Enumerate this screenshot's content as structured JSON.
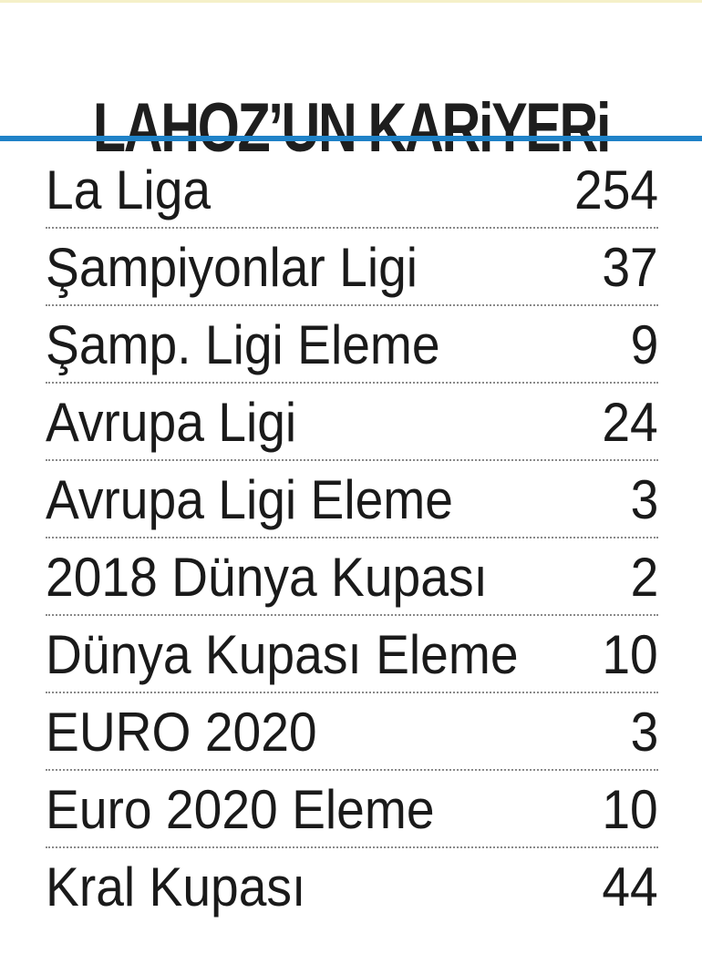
{
  "header": {
    "title": "LAHOZ’UN KARiYERi"
  },
  "career": [
    {
      "label": "La Liga",
      "value": "254"
    },
    {
      "label": "Şampiyonlar Ligi",
      "value": "37"
    },
    {
      "label": "Şamp. Ligi Eleme",
      "value": "9"
    },
    {
      "label": "Avrupa Ligi",
      "value": "24"
    },
    {
      "label": "Avrupa Ligi Eleme",
      "value": "3"
    },
    {
      "label": "2018 Dünya Kupası",
      "value": "2"
    },
    {
      "label": "Dünya Kupası Eleme",
      "value": "10"
    },
    {
      "label": "EURO 2020",
      "value": "3"
    },
    {
      "label": "Euro 2020 Eleme",
      "value": "10"
    },
    {
      "label": "Kral Kupası",
      "value": "44"
    }
  ],
  "colors": {
    "accent_rule": "#1f82c8",
    "text": "#1a1a1a"
  }
}
